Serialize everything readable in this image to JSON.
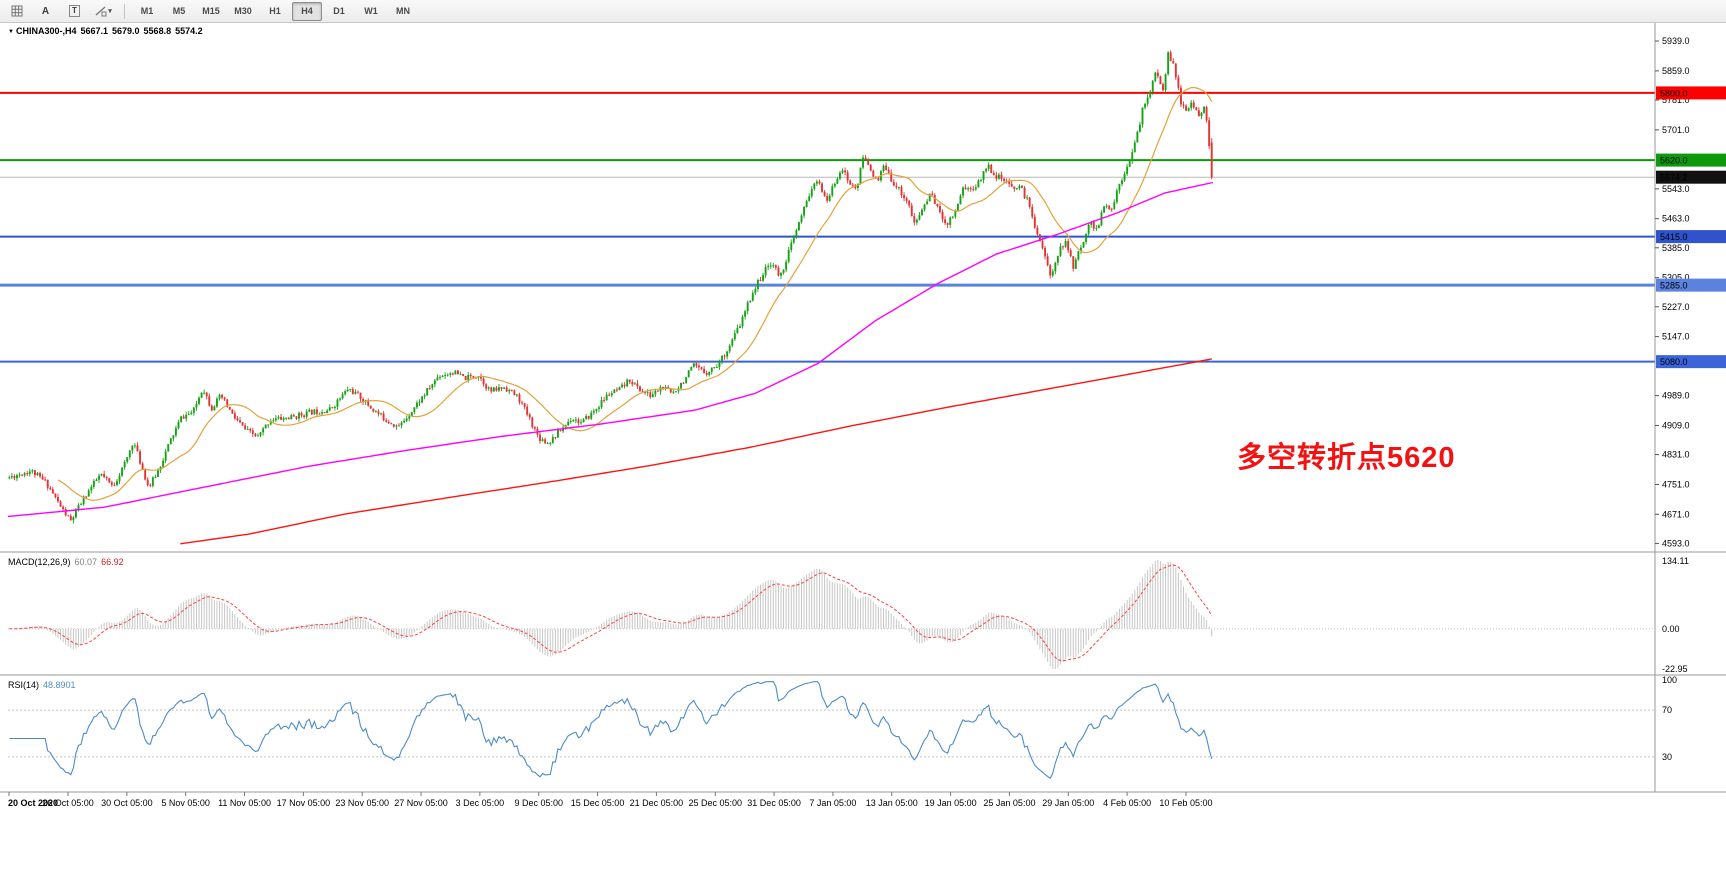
{
  "toolbar": {
    "label_a": "A",
    "label_t": "T",
    "timeframes": [
      "M1",
      "M5",
      "M15",
      "M30",
      "H1",
      "H4",
      "D1",
      "W1",
      "MN"
    ],
    "active_timeframe": "H4"
  },
  "chart_header": {
    "symbol": "CHINA300-,H4",
    "open": "5667.1",
    "high": "5679.0",
    "low": "5568.8",
    "close": "5574.2"
  },
  "annotation": {
    "text": "多空转折点5620",
    "color": "#f21212"
  },
  "indicators": {
    "macd": {
      "label": "MACD(12,26,9)",
      "main_value": "60.07",
      "signal_value": "66.92",
      "axis_ticks": [
        "134.11",
        "0.00",
        "-22.95"
      ]
    },
    "rsi": {
      "label": "RSI(14)",
      "value": "48.8901",
      "axis_ticks": [
        "100",
        "70",
        "30"
      ],
      "levels": [
        70,
        30
      ]
    }
  },
  "chart_data": {
    "type": "candlestick",
    "symbol": "CHINA300-",
    "timeframe": "H4",
    "title": "CHINA300-,H4 5667.1 5679.0 5568.8 5574.2",
    "ylim": [
      4570,
      5990
    ],
    "y_ticks": [
      "5939.0",
      "5859.0",
      "5781.0",
      "5701.0",
      "5543.0",
      "5463.0",
      "5385.0",
      "5305.0",
      "5227.0",
      "5147.0",
      "4989.0",
      "4909.0",
      "4831.0",
      "4751.0",
      "4671.0",
      "4593.0"
    ],
    "x_labels": [
      "20 Oct 2020",
      "26 Oct 05:00",
      "30 Oct 05:00",
      "5 Nov 05:00",
      "11 Nov 05:00",
      "17 Nov 05:00",
      "23 Nov 05:00",
      "27 Nov 05:00",
      "3 Dec 05:00",
      "9 Dec 05:00",
      "15 Dec 05:00",
      "21 Dec 05:00",
      "25 Dec 05:00",
      "31 Dec 05:00",
      "7 Jan 05:00",
      "13 Jan 05:00",
      "19 Jan 05:00",
      "25 Jan 05:00",
      "29 Jan 05:00",
      "4 Feb 05:00",
      "10 Feb 05:00"
    ],
    "n_bars": 470,
    "seed": 11,
    "noise": {
      "close": 8,
      "wick": 9
    },
    "current_bar": {
      "open": 5667.1,
      "high": 5679.0,
      "low": 5568.8,
      "close": 5574.2
    },
    "last_price": 5574.2,
    "hlines": [
      {
        "value": 5800.0,
        "color": "#ff0000",
        "width": 2,
        "label": "5800.0",
        "badge_bg": "#ff0000",
        "label_color": "#ffffff"
      },
      {
        "value": 5620.0,
        "color": "#0c9a0c",
        "width": 2,
        "label": "5620.0",
        "badge_bg": "#0c9a0c",
        "label_color": "#ffff4d"
      },
      {
        "value": 5574.2,
        "color": "#b8b8b8",
        "width": 1,
        "label": "5574.2",
        "badge_bg": "#111111",
        "label_color": "#ffffff"
      },
      {
        "value": 5415.0,
        "color": "#3052cc",
        "width": 2,
        "label": "5415.0",
        "badge_bg": "#3052cc",
        "label_color": "#ffffff"
      },
      {
        "value": 5285.0,
        "color": "#5b82de",
        "width": 3,
        "label": "5285.0",
        "badge_bg": "#5b82de",
        "label_color": "#ffffff"
      },
      {
        "value": 5080.0,
        "color": "#3a64d8",
        "width": 2,
        "label": "5080.0",
        "badge_bg": "#3a64d8",
        "label_color": "#ffffff"
      }
    ],
    "price_path": [
      [
        0.0,
        4770
      ],
      [
        0.018,
        4788
      ],
      [
        0.031,
        4755
      ],
      [
        0.043,
        4690
      ],
      [
        0.051,
        4652
      ],
      [
        0.064,
        4725
      ],
      [
        0.076,
        4778
      ],
      [
        0.086,
        4745
      ],
      [
        0.097,
        4812
      ],
      [
        0.103,
        4868
      ],
      [
        0.11,
        4800
      ],
      [
        0.116,
        4742
      ],
      [
        0.124,
        4790
      ],
      [
        0.134,
        4868
      ],
      [
        0.143,
        4930
      ],
      [
        0.153,
        4945
      ],
      [
        0.161,
        5012
      ],
      [
        0.168,
        4955
      ],
      [
        0.176,
        4988
      ],
      [
        0.186,
        4935
      ],
      [
        0.197,
        4895
      ],
      [
        0.207,
        4878
      ],
      [
        0.217,
        4925
      ],
      [
        0.234,
        4930
      ],
      [
        0.251,
        4945
      ],
      [
        0.267,
        4952
      ],
      [
        0.282,
        5008
      ],
      [
        0.292,
        4985
      ],
      [
        0.302,
        4952
      ],
      [
        0.313,
        4925
      ],
      [
        0.324,
        4905
      ],
      [
        0.335,
        4950
      ],
      [
        0.349,
        5008
      ],
      [
        0.357,
        5042
      ],
      [
        0.369,
        5052
      ],
      [
        0.379,
        5035
      ],
      [
        0.39,
        5045
      ],
      [
        0.4,
        5000
      ],
      [
        0.412,
        5012
      ],
      [
        0.423,
        4985
      ],
      [
        0.432,
        4932
      ],
      [
        0.44,
        4878
      ],
      [
        0.448,
        4862
      ],
      [
        0.458,
        4895
      ],
      [
        0.468,
        4930
      ],
      [
        0.476,
        4915
      ],
      [
        0.487,
        4950
      ],
      [
        0.498,
        4992
      ],
      [
        0.508,
        5005
      ],
      [
        0.516,
        5032
      ],
      [
        0.524,
        5005
      ],
      [
        0.533,
        4988
      ],
      [
        0.543,
        5012
      ],
      [
        0.551,
        4995
      ],
      [
        0.561,
        5030
      ],
      [
        0.569,
        5068
      ],
      [
        0.579,
        5050
      ],
      [
        0.589,
        5072
      ],
      [
        0.599,
        5122
      ],
      [
        0.609,
        5188
      ],
      [
        0.617,
        5258
      ],
      [
        0.626,
        5312
      ],
      [
        0.634,
        5348
      ],
      [
        0.641,
        5305
      ],
      [
        0.649,
        5382
      ],
      [
        0.657,
        5452
      ],
      [
        0.667,
        5545
      ],
      [
        0.674,
        5562
      ],
      [
        0.679,
        5505
      ],
      [
        0.686,
        5555
      ],
      [
        0.692,
        5602
      ],
      [
        0.699,
        5555
      ],
      [
        0.705,
        5545
      ],
      [
        0.71,
        5628
      ],
      [
        0.717,
        5595
      ],
      [
        0.722,
        5555
      ],
      [
        0.727,
        5605
      ],
      [
        0.732,
        5575
      ],
      [
        0.739,
        5545
      ],
      [
        0.747,
        5510
      ],
      [
        0.753,
        5445
      ],
      [
        0.76,
        5495
      ],
      [
        0.767,
        5532
      ],
      [
        0.774,
        5475
      ],
      [
        0.78,
        5450
      ],
      [
        0.787,
        5485
      ],
      [
        0.793,
        5548
      ],
      [
        0.8,
        5540
      ],
      [
        0.807,
        5562
      ],
      [
        0.813,
        5608
      ],
      [
        0.82,
        5580
      ],
      [
        0.827,
        5565
      ],
      [
        0.833,
        5545
      ],
      [
        0.84,
        5552
      ],
      [
        0.847,
        5510
      ],
      [
        0.853,
        5445
      ],
      [
        0.86,
        5380
      ],
      [
        0.866,
        5302
      ],
      [
        0.871,
        5365
      ],
      [
        0.878,
        5402
      ],
      [
        0.885,
        5335
      ],
      [
        0.891,
        5385
      ],
      [
        0.898,
        5452
      ],
      [
        0.905,
        5435
      ],
      [
        0.911,
        5502
      ],
      [
        0.916,
        5480
      ],
      [
        0.923,
        5555
      ],
      [
        0.929,
        5602
      ],
      [
        0.936,
        5660
      ],
      [
        0.943,
        5762
      ],
      [
        0.95,
        5818
      ],
      [
        0.954,
        5858
      ],
      [
        0.959,
        5802
      ],
      [
        0.964,
        5908
      ],
      [
        0.969,
        5862
      ],
      [
        0.974,
        5778
      ],
      [
        0.979,
        5750
      ],
      [
        0.984,
        5772
      ],
      [
        0.989,
        5745
      ],
      [
        0.994,
        5756
      ],
      [
        0.997,
        5700
      ],
      [
        1.0,
        5574
      ]
    ],
    "ma_fast_period": 20,
    "ma_mid_path": [
      [
        0.0,
        4665
      ],
      [
        0.08,
        4690
      ],
      [
        0.16,
        4742
      ],
      [
        0.25,
        4800
      ],
      [
        0.33,
        4842
      ],
      [
        0.41,
        4880
      ],
      [
        0.49,
        4912
      ],
      [
        0.57,
        4950
      ],
      [
        0.62,
        4995
      ],
      [
        0.672,
        5075
      ],
      [
        0.72,
        5190
      ],
      [
        0.772,
        5290
      ],
      [
        0.82,
        5368
      ],
      [
        0.87,
        5420
      ],
      [
        0.92,
        5478
      ],
      [
        0.96,
        5532
      ],
      [
        1.0,
        5560
      ]
    ],
    "ma_slow_path": [
      [
        0.143,
        4592
      ],
      [
        0.2,
        4618
      ],
      [
        0.28,
        4672
      ],
      [
        0.37,
        4718
      ],
      [
        0.45,
        4758
      ],
      [
        0.53,
        4800
      ],
      [
        0.615,
        4850
      ],
      [
        0.7,
        4908
      ],
      [
        0.78,
        4958
      ],
      [
        0.865,
        5008
      ],
      [
        0.95,
        5058
      ],
      [
        1.0,
        5088
      ]
    ],
    "colors": {
      "up": "#16a216",
      "down": "#e23232",
      "ma_fast": "#e2a23b",
      "ma_mid": "#ff00ff",
      "ma_slow": "#ff1414",
      "macd_hist": "#c6c6c6",
      "macd_signal": "#ff4040",
      "rsi": "#4d8bc9"
    }
  }
}
